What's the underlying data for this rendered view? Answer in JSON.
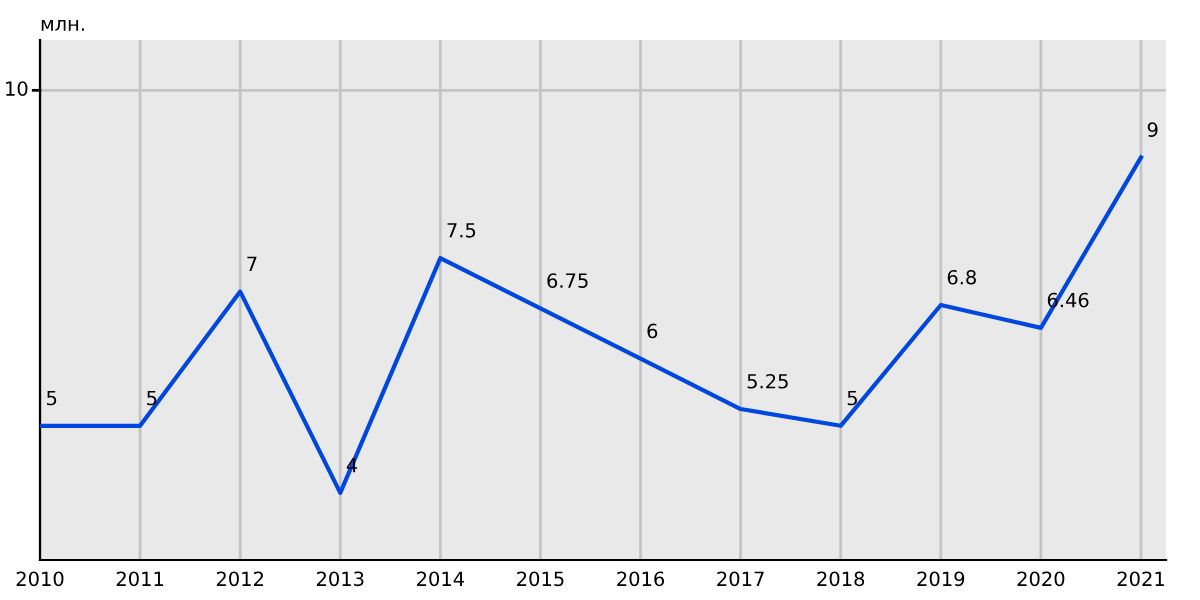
{
  "chart_data": {
    "type": "line",
    "ylabel": "млн.",
    "x": [
      2010,
      2011,
      2012,
      2013,
      2014,
      2015,
      2016,
      2017,
      2018,
      2019,
      2020,
      2021
    ],
    "series": [
      {
        "color": "#0047e0",
        "values": [
          5,
          5,
          7,
          4,
          7.5,
          6.75,
          6,
          5.25,
          5,
          6.8,
          6.46,
          9
        ]
      }
    ],
    "xlim": [
      2010,
      2021.25
    ],
    "xticks": [
      2010,
      2011,
      2012,
      2013,
      2014,
      2015,
      2016,
      2017,
      2018,
      2019,
      2020,
      2021
    ],
    "ylim": [
      3,
      10.75
    ],
    "ref_lines": [
      {
        "axis": "y",
        "value": 10,
        "label": "10",
        "color": "#c4c4c4"
      }
    ],
    "grid": "x",
    "data_labels": true,
    "marker": "none",
    "line_style": "solid"
  }
}
